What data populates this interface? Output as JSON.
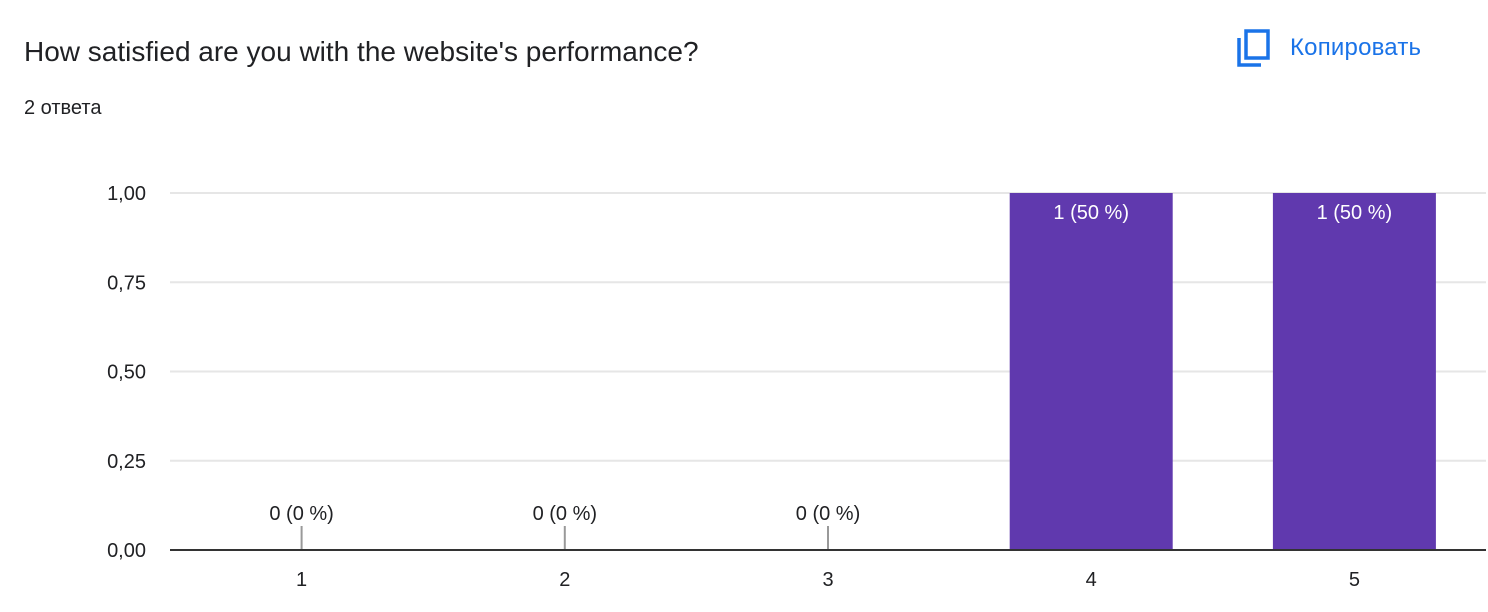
{
  "question": {
    "title": "How satisfied are you with the website's performance?",
    "responses": "2 ответа"
  },
  "copy_button": {
    "label": "Копировать",
    "icon": "copy-icon"
  },
  "colors": {
    "bar": "#6039ae",
    "copy_accent": "#1a73e8",
    "axis": "#333333",
    "grid": "#e6e6e6",
    "text": "#202124"
  },
  "chart_data": {
    "type": "bar",
    "categories": [
      "1",
      "2",
      "3",
      "4",
      "5"
    ],
    "values": [
      0,
      0,
      0,
      1,
      1
    ],
    "data_labels": [
      "0 (0 %)",
      "0 (0 %)",
      "0 (0 %)",
      "1 (50 %)",
      "1 (50 %)"
    ],
    "ylim": [
      0,
      1
    ],
    "yticks": [
      "0,00",
      "0,25",
      "0,50",
      "0,75",
      "1,00"
    ],
    "grid": true,
    "legend": "none"
  }
}
